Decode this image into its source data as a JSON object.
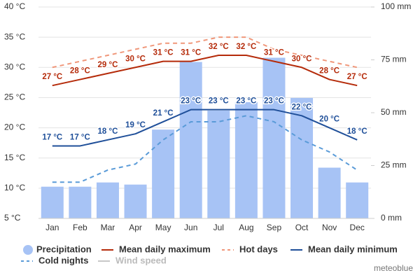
{
  "chart_data": {
    "type": "line",
    "categories": [
      "Jan",
      "Feb",
      "Mar",
      "Apr",
      "May",
      "Jun",
      "Jul",
      "Aug",
      "Sep",
      "Oct",
      "Nov",
      "Dec"
    ],
    "ylim": [
      5,
      40
    ],
    "yticks": [
      {
        "value": 5,
        "label": "5 °C"
      },
      {
        "value": 10,
        "label": "10 °C"
      },
      {
        "value": 15,
        "label": "15 °C"
      },
      {
        "value": 20,
        "label": "20 °C"
      },
      {
        "value": 25,
        "label": "25 °C"
      },
      {
        "value": 30,
        "label": "30 °C"
      },
      {
        "value": 35,
        "label": "35 °C"
      },
      {
        "value": 40,
        "label": "40 °C"
      }
    ],
    "y2lim": [
      0,
      100
    ],
    "y2ticks": [
      {
        "value": 0,
        "label": "0 mm"
      },
      {
        "value": 25,
        "label": "25 mm"
      },
      {
        "value": 50,
        "label": "50 mm"
      },
      {
        "value": 75,
        "label": "75 mm"
      },
      {
        "value": 100,
        "label": "100 mm"
      }
    ],
    "grid": true,
    "series": [
      {
        "name": "Precipitation",
        "type": "bar",
        "axis": "y2",
        "color": "#a7c3f5",
        "values": [
          15,
          15,
          17,
          16,
          42,
          74,
          51,
          55,
          76,
          57,
          24,
          17
        ]
      },
      {
        "name": "Mean daily maximum",
        "type": "line",
        "color": "#b52b0a",
        "values": [
          27,
          28,
          29,
          30,
          31,
          31,
          32,
          32,
          31,
          30,
          28,
          27
        ],
        "value_labels": [
          "27 °C",
          "28 °C",
          "29 °C",
          "30 °C",
          "31 °C",
          "31 °C",
          "32 °C",
          "32 °C",
          "31 °C",
          "30 °C",
          "28 °C",
          "27 °C"
        ]
      },
      {
        "name": "Hot days",
        "type": "line",
        "dash": true,
        "color": "#f0977a",
        "values": [
          30,
          31,
          32,
          33,
          34,
          34,
          35,
          35,
          33,
          32,
          31,
          30
        ]
      },
      {
        "name": "Mean daily minimum",
        "type": "line",
        "color": "#1f4f99",
        "values": [
          17,
          17,
          18,
          19,
          21,
          23,
          23,
          23,
          23,
          22,
          20,
          18
        ],
        "value_labels": [
          "17 °C",
          "17 °C",
          "18 °C",
          "19 °C",
          "21 °C",
          "23 °C",
          "23 °C",
          "23 °C",
          "23 °C",
          "22 °C",
          "20 °C",
          "18 °C"
        ]
      },
      {
        "name": "Cold nights",
        "type": "line",
        "dash": true,
        "color": "#5a9bd8",
        "values": [
          11,
          11,
          13,
          14,
          18,
          21,
          21,
          22,
          21,
          18,
          16,
          13
        ]
      },
      {
        "name": "Wind speed",
        "type": "line",
        "color": "#c8c8c8",
        "values": [
          null,
          null,
          null,
          null,
          null,
          null,
          null,
          null,
          null,
          null,
          null,
          null
        ]
      }
    ],
    "brand": "meteoblue"
  }
}
